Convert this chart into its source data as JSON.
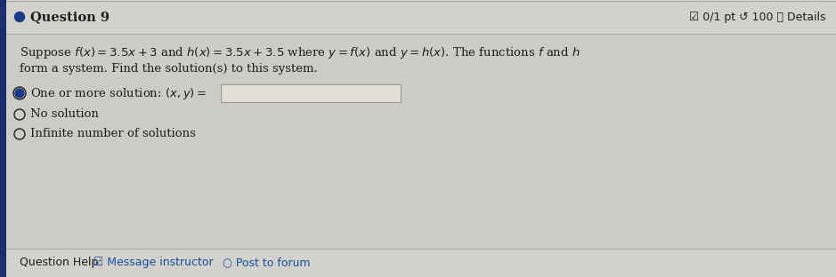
{
  "background_color": "#c8c7c2",
  "header_bg": "#d2d1cc",
  "body_bg": "#cccbc6",
  "title": "Question 9",
  "title_fontsize": 10.5,
  "score_text": "☑ 0/1 pt ↺ 100 ⓘ Details",
  "score_fontsize": 9,
  "body_text_line1": "Suppose $f(x) = 3.5x + 3$ and $h(x) = 3.5x + 3.5$ where $y = f(x)$ and $y = h(x)$. The functions $f$ and $h$",
  "body_text_line2": "form a system. Find the solution(s) to this system.",
  "option1_prefix": "● One or more solution: $(x, y) =$",
  "option2_label": "○ No solution",
  "option3_label": "○ Infinite number of solutions",
  "help_label": "Question Help:",
  "msg_instructor": "☑ Message instructor",
  "post_forum": "○ Post to forum",
  "left_bar_color": "#1a2f6e",
  "input_box_bg": "#e2dfd8",
  "text_color": "#1e1e1e",
  "link_color": "#1a4fa0",
  "sep_color": "#aaaaaa",
  "body_fontsize": 9.5,
  "option_fontsize": 9.5,
  "help_fontsize": 9.0,
  "bullet_color": "#1a3a8a"
}
